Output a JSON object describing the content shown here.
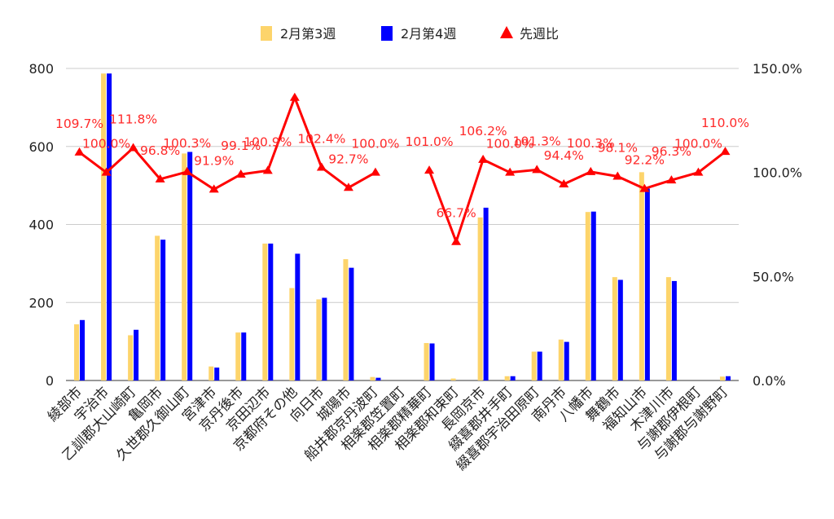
{
  "chart_data": {
    "type": "bar",
    "title": "",
    "categories": [
      "綾部市",
      "宇治市",
      "乙訓郡大山崎町",
      "亀岡市",
      "久世郡久御山町",
      "宮津市",
      "京丹後市",
      "京田辺市",
      "京都府その他",
      "向日市",
      "城陽市",
      "船井郡京丹波町",
      "相楽郡笠置町",
      "相楽郡精華町",
      "相楽郡和束町",
      "長岡京市",
      "綴喜郡井手町",
      "綴喜郡宇治田原町",
      "南丹市",
      "八幡市",
      "舞鶴市",
      "福知山市",
      "木津川市",
      "与謝郡伊根町",
      "与謝郡与謝野町"
    ],
    "series": [
      {
        "name": "2月第3週",
        "type": "bar",
        "axis": "left",
        "color": "#fdd46b",
        "values": [
          144,
          787,
          116,
          371,
          582,
          36,
          123,
          351,
          237,
          208,
          311,
          9,
          0,
          96,
          5,
          418,
          11,
          74,
          105,
          432,
          265,
          534,
          265,
          0,
          10
        ]
      },
      {
        "name": "2月第4週",
        "type": "bar",
        "axis": "left",
        "color": "#0000ff",
        "values": [
          155,
          787,
          130,
          361,
          586,
          33,
          123,
          351,
          325,
          212,
          289,
          7,
          0,
          95,
          0,
          443,
          11,
          74,
          99,
          433,
          258,
          492,
          255,
          0,
          11
        ]
      },
      {
        "name": "先週比",
        "type": "line",
        "axis": "right",
        "color": "#ff0000",
        "values": [
          109.7,
          100.0,
          111.8,
          96.8,
          100.3,
          91.9,
          99.1,
          100.9,
          136.0,
          102.4,
          92.7,
          100.0,
          null,
          101.0,
          66.7,
          106.2,
          100.0,
          101.3,
          94.4,
          100.3,
          98.1,
          92.2,
          96.3,
          100.0,
          110.0
        ],
        "labels": [
          "109.7%",
          "100.0%",
          "111.8%",
          "96.8%",
          "100.3%",
          "91.9%",
          "99.1%",
          "100.9%",
          "",
          "102.4%",
          "92.7%",
          "100.0%",
          "",
          "101.0%",
          "66.7%",
          "106.2%",
          "100.0%",
          "101.3%",
          "94.4%",
          "100.3%",
          "98.1%",
          "92.2%",
          "96.3%",
          "100.0%",
          "110.0%"
        ]
      }
    ],
    "y_left": {
      "min": 0,
      "max": 800,
      "ticks": [
        0,
        200,
        400,
        600,
        800
      ],
      "tick_labels": [
        "0",
        "200",
        "400",
        "600",
        "800"
      ]
    },
    "y_right": {
      "min": 0,
      "max": 150,
      "ticks": [
        0,
        50,
        100,
        150
      ],
      "tick_labels": [
        "0.0%",
        "50.0%",
        "100.0%",
        "150.0%"
      ]
    },
    "grid": true,
    "legend": "top"
  }
}
